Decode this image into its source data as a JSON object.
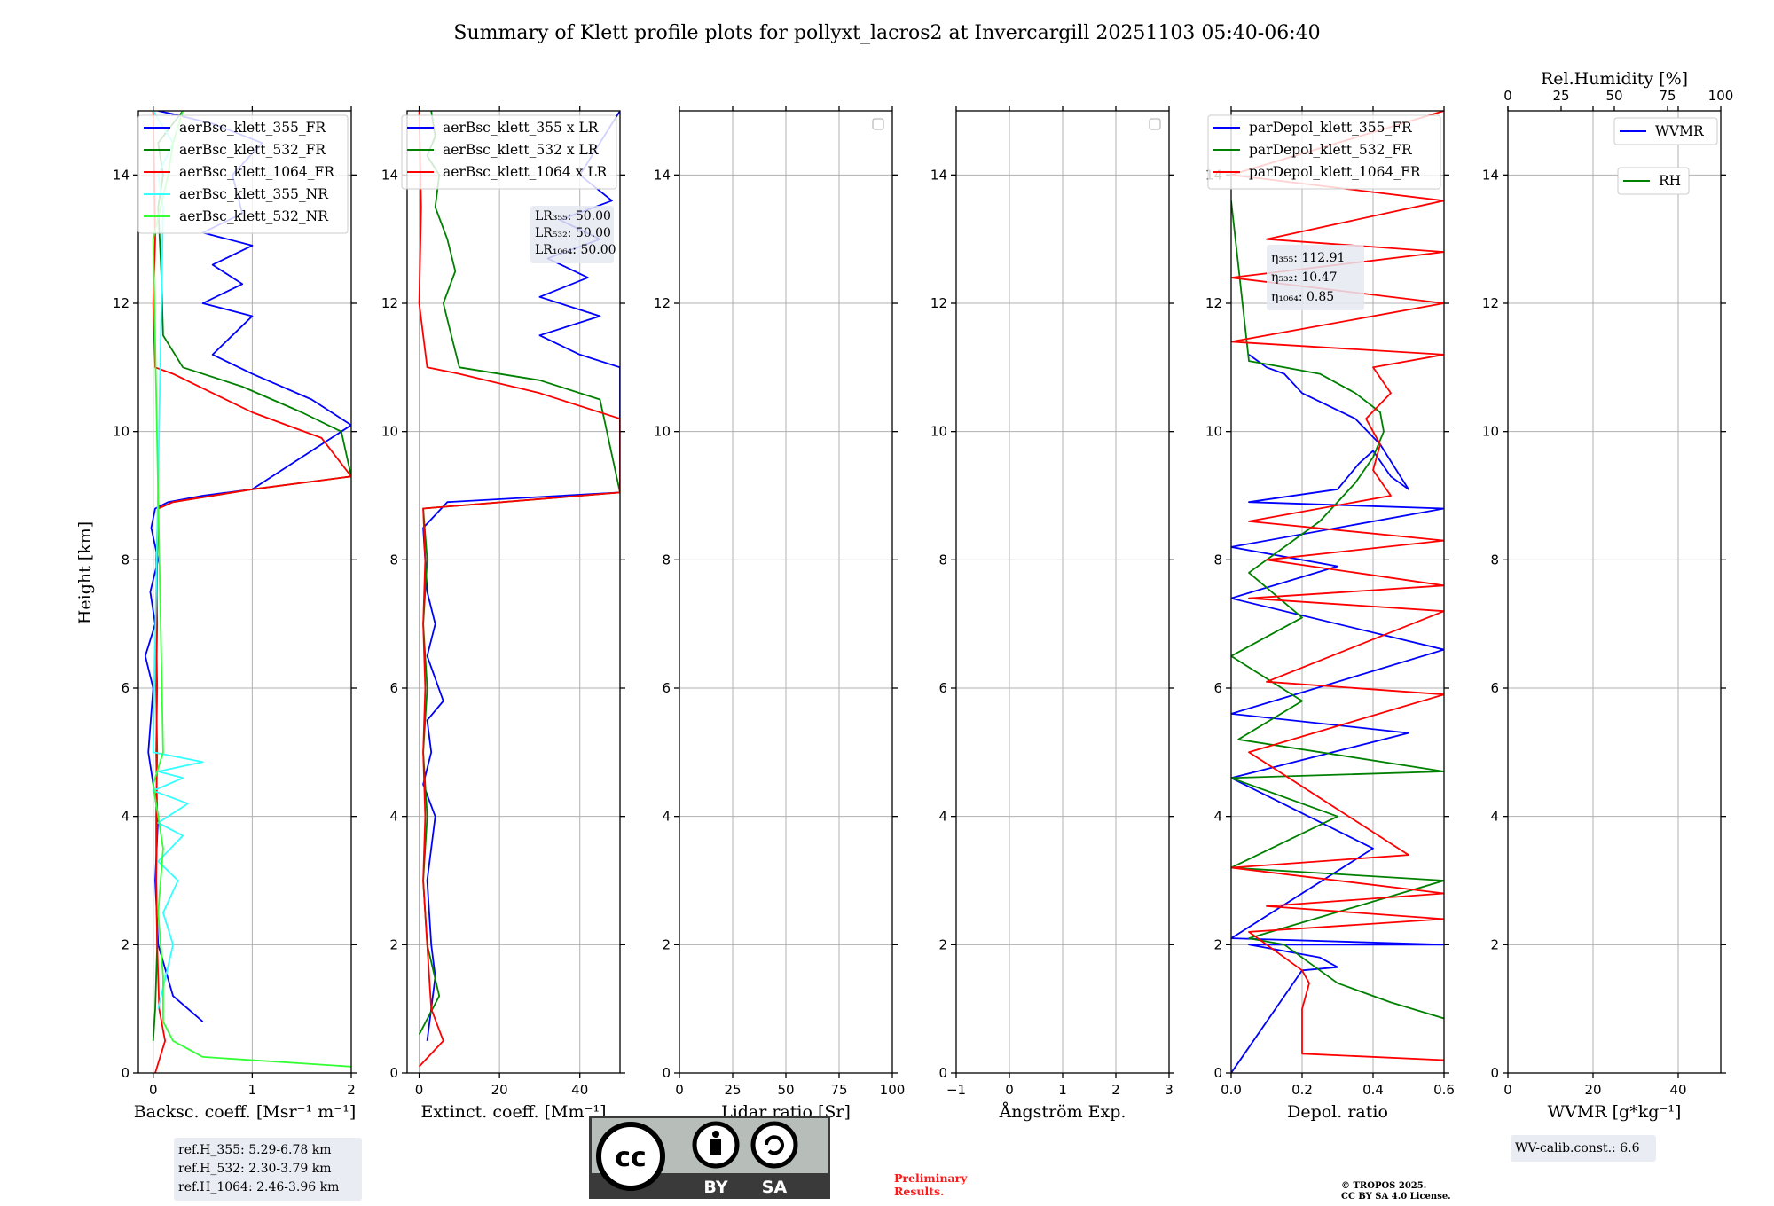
{
  "figure": {
    "title": "Summary of Klett profile plots for pollyxt_lacros2 at Invercargill 20251103 05:40-06:40",
    "y_label": "Height [km]",
    "preliminary": "Preliminary\nResults.",
    "copyright": "© TROPOS 2025.\nCC BY SA 4.0 License.",
    "cc_badge": {
      "by": "BY",
      "sa": "SA",
      "cc": "cc"
    },
    "colors": {
      "blue": "#0000ff",
      "green": "#008000",
      "red": "#ff0000",
      "cyan": "#33ffff",
      "lightgreen": "#33ff33",
      "grid": "#b0b0b0",
      "red_text": "#ff1a1a"
    }
  },
  "chart_data": [
    {
      "id": "backscatter",
      "type": "line",
      "xlabel": "Backsc. coeff. [Msr⁻¹ m⁻¹]",
      "ylabel": "Height [km]",
      "xlim": [
        -0.15,
        2.0
      ],
      "ylim": [
        0,
        15
      ],
      "xticks": [
        0,
        1,
        2
      ],
      "yticks": [
        0,
        2,
        4,
        6,
        8,
        10,
        12,
        14
      ],
      "legend": [
        "aerBsc_klett_355_FR",
        "aerBsc_klett_532_FR",
        "aerBsc_klett_1064_FR",
        "aerBsc_klett_355_NR",
        "aerBsc_klett_532_NR"
      ],
      "legend_loc": "upper right",
      "series": [
        {
          "name": "aerBsc_klett_355_FR",
          "color": "blue",
          "x": [
            0.5,
            0.2,
            0.05,
            0.02,
            0.05,
            -0.05,
            0.0,
            -0.08,
            0.02,
            -0.03,
            0.05,
            -0.02,
            0.02,
            0.15,
            0.5,
            1.0,
            2.0,
            1.6,
            1.0,
            0.6,
            0.8,
            1.0,
            0.5,
            0.9,
            0.6,
            1.0,
            0.5,
            0.9,
            0.8,
            1.1,
            0.6,
            0.2,
            0.05
          ],
          "y": [
            0.8,
            1.2,
            2.0,
            3.0,
            4.0,
            5.0,
            6.0,
            6.5,
            7.0,
            7.5,
            8.0,
            8.5,
            8.8,
            8.9,
            9.0,
            9.1,
            10.1,
            10.5,
            10.9,
            11.2,
            11.5,
            11.8,
            12.0,
            12.3,
            12.6,
            12.9,
            13.1,
            13.4,
            14.0,
            14.5,
            14.8,
            14.95,
            15.0
          ]
        },
        {
          "name": "aerBsc_klett_532_FR",
          "color": "green",
          "x": [
            0.0,
            0.02,
            0.04,
            0.03,
            0.04,
            0.03,
            0.04,
            0.03,
            0.04,
            0.05,
            0.2,
            1.0,
            2.0,
            1.9,
            1.5,
            0.9,
            0.3,
            0.1,
            0.08,
            0.05,
            0.1,
            0.05,
            0.3
          ],
          "y": [
            0.5,
            1.0,
            2.0,
            3.0,
            4.0,
            5.0,
            6.0,
            7.0,
            8.0,
            8.8,
            8.9,
            9.1,
            9.3,
            10.0,
            10.3,
            10.7,
            11.0,
            11.5,
            12.5,
            13.5,
            14.0,
            14.5,
            15.0
          ]
        },
        {
          "name": "aerBsc_klett_1064_FR",
          "color": "red",
          "x": [
            0.02,
            0.12,
            0.06,
            0.04,
            0.03,
            0.03,
            0.04,
            0.03,
            0.04,
            0.03,
            0.05,
            0.2,
            1.0,
            2.0,
            1.7,
            1.0,
            0.6,
            0.2,
            0.02,
            0.0,
            0.02,
            0.01,
            0.0
          ],
          "y": [
            0.0,
            0.5,
            1.0,
            2.0,
            3.0,
            4.0,
            5.0,
            6.0,
            7.0,
            8.0,
            8.8,
            8.9,
            9.1,
            9.3,
            9.9,
            10.3,
            10.6,
            10.9,
            11.0,
            12.0,
            13.0,
            14.0,
            15.0
          ]
        },
        {
          "name": "aerBsc_klett_355_NR",
          "color": "cyan",
          "x": [
            0.05,
            0.2,
            0.1,
            0.25,
            0.05,
            0.3,
            0.05,
            0.35,
            0.0,
            0.3,
            0.05,
            0.5,
            0.0,
            0.1,
            0.05,
            0.2,
            0.0
          ],
          "y": [
            1.0,
            2.0,
            2.5,
            3.0,
            3.3,
            3.7,
            3.9,
            4.2,
            4.4,
            4.6,
            4.7,
            4.85,
            5.0,
            13.5,
            14.0,
            14.5,
            15.0
          ]
        },
        {
          "name": "aerBsc_klett_532_NR",
          "color": "lightgreen",
          "x": [
            2.0,
            0.5,
            0.2,
            0.1,
            0.1,
            0.05,
            0.1,
            0.0,
            0.1,
            0.0,
            0.15,
            0.2,
            0.3
          ],
          "y": [
            0.1,
            0.25,
            0.5,
            0.8,
            1.5,
            2.5,
            3.5,
            4.5,
            5.0,
            13.0,
            14.0,
            14.5,
            15.0
          ]
        }
      ],
      "info_box": [
        "ref.H_355: 5.29-6.78 km",
        "ref.H_532: 2.30-3.79 km",
        "ref.H_1064: 2.46-3.96 km"
      ]
    },
    {
      "id": "extinction",
      "type": "line",
      "xlabel": "Extinct. coeff. [Mm⁻¹]",
      "xlim": [
        -3,
        50
      ],
      "ylim": [
        0,
        15
      ],
      "xticks": [
        0,
        20,
        40
      ],
      "yticks": [
        0,
        2,
        4,
        6,
        8,
        10,
        12,
        14
      ],
      "legend": [
        "aerBsc_klett_355 x LR",
        "aerBsc_klett_532 x LR",
        "aerBsc_klett_1064 x LR"
      ],
      "legend_loc": "upper right",
      "series": [
        {
          "name": "aerBsc_klett_355 x LR",
          "color": "blue",
          "x": [
            2,
            4,
            3,
            2,
            4,
            1,
            3,
            2,
            6,
            2,
            4,
            2,
            1,
            7,
            50,
            50,
            40,
            30,
            45,
            30,
            42,
            32,
            45,
            35,
            48,
            40,
            50
          ],
          "y": [
            0.5,
            1.5,
            2.0,
            3.0,
            4.0,
            4.5,
            5.0,
            5.5,
            5.8,
            6.5,
            7.0,
            7.5,
            8.5,
            8.9,
            9.05,
            11.0,
            11.2,
            11.5,
            11.8,
            12.1,
            12.4,
            12.7,
            13.0,
            13.3,
            13.6,
            14.0,
            15.0
          ]
        },
        {
          "name": "aerBsc_klett_532 x LR",
          "color": "green",
          "x": [
            0,
            5,
            2,
            1,
            2,
            1,
            2,
            1,
            2,
            1,
            50,
            45,
            30,
            10,
            8,
            6,
            9,
            7,
            4,
            5,
            2,
            4,
            3
          ],
          "y": [
            0.6,
            1.2,
            2.0,
            3.0,
            4.0,
            5.0,
            6.0,
            7.0,
            8.0,
            8.8,
            9.05,
            10.5,
            10.8,
            11.0,
            11.5,
            12.0,
            12.5,
            13.0,
            13.5,
            14.0,
            14.3,
            14.6,
            15.0
          ]
        },
        {
          "name": "aerBsc_klett_1064 x LR",
          "color": "red",
          "x": [
            0,
            6,
            3,
            2,
            1,
            1.5,
            1,
            1.5,
            1,
            1.5,
            1,
            50,
            50,
            30,
            10,
            2,
            0,
            0.5,
            0
          ],
          "y": [
            0.1,
            0.5,
            1.0,
            2.0,
            3.0,
            4.0,
            5.0,
            6.0,
            7.0,
            8.0,
            8.8,
            9.05,
            10.2,
            10.6,
            10.9,
            11.0,
            12.0,
            13.5,
            15.0
          ]
        }
      ],
      "info_box": [
        "LR₃₅₅: 50.00",
        "LR₅₃₂: 50.00",
        "LR₁₀₆₄: 50.00"
      ]
    },
    {
      "id": "lidar_ratio",
      "type": "line",
      "xlabel": "Lidar ratio [Sr]",
      "xlim": [
        0,
        100
      ],
      "ylim": [
        0,
        15
      ],
      "xticks": [
        0,
        25,
        50,
        75,
        100
      ],
      "yticks": [
        0,
        2,
        4,
        6,
        8,
        10,
        12,
        14
      ],
      "series": []
    },
    {
      "id": "angstrom",
      "type": "line",
      "xlabel": "Ångström Exp.",
      "xlim": [
        -1,
        3
      ],
      "ylim": [
        0,
        15
      ],
      "xticks": [
        -1,
        0,
        1,
        2,
        3
      ],
      "yticks": [
        0,
        2,
        4,
        6,
        8,
        10,
        12,
        14
      ],
      "series": []
    },
    {
      "id": "depol",
      "type": "line",
      "xlabel": "Depol. ratio",
      "xlim": [
        0,
        0.6
      ],
      "ylim": [
        0,
        15
      ],
      "xticks": [
        0.0,
        0.2,
        0.4,
        0.6
      ],
      "tick_labels": [
        "0.0",
        "0.2",
        "0.4",
        "0.6"
      ],
      "yticks": [
        0,
        2,
        4,
        6,
        8,
        10,
        12,
        14
      ],
      "legend": [
        "parDepol_klett_355_FR",
        "parDepol_klett_532_FR",
        "parDepol_klett_1064_FR"
      ],
      "legend_loc": "upper right",
      "series": [
        {
          "name": "parDepol_klett_355_FR",
          "color": "blue",
          "x": [
            0.0,
            0.2,
            0.3,
            0.25,
            0.05,
            0.6,
            0.0,
            0.4,
            0.0,
            0.5,
            0.0,
            0.6,
            0.0,
            0.3,
            0.0,
            0.6,
            0.05,
            0.3,
            0.36,
            0.4,
            0.45,
            0.5,
            0.42,
            0.35,
            0.2,
            0.15,
            0.1,
            0.05
          ],
          "y": [
            0.0,
            1.6,
            1.65,
            1.8,
            2.0,
            2.0,
            2.1,
            3.5,
            4.6,
            5.3,
            5.6,
            6.6,
            7.4,
            7.9,
            8.2,
            8.8,
            8.9,
            9.1,
            9.5,
            9.7,
            9.3,
            9.1,
            9.8,
            10.2,
            10.6,
            10.9,
            11.0,
            11.2
          ]
        },
        {
          "name": "parDepol_klett_532_FR",
          "color": "green",
          "x": [
            0.6,
            0.45,
            0.3,
            0.25,
            0.2,
            0.15,
            0.05,
            0.6,
            0.0,
            0.3,
            0.0,
            0.6,
            0.02,
            0.2,
            0.0,
            0.2,
            0.05,
            0.25,
            0.35,
            0.4,
            0.43,
            0.42,
            0.35,
            0.25,
            0.15,
            0.05,
            0.0
          ],
          "y": [
            0.85,
            1.1,
            1.4,
            1.6,
            1.8,
            2.0,
            2.1,
            3.0,
            3.2,
            4.0,
            4.6,
            4.7,
            5.2,
            5.8,
            6.5,
            7.1,
            7.8,
            8.6,
            9.2,
            9.6,
            10.0,
            10.3,
            10.6,
            10.9,
            11.0,
            11.1,
            13.6
          ]
        },
        {
          "name": "parDepol_klett_1064_FR",
          "color": "red",
          "x": [
            0.6,
            0.2,
            0.2,
            0.22,
            0.2,
            0.15,
            0.1,
            0.05,
            0.6,
            0.1,
            0.6,
            0.0,
            0.5,
            0.05,
            0.6,
            0.1,
            0.6,
            0.05,
            0.6,
            0.1,
            0.6,
            0.05,
            0.45,
            0.4,
            0.42,
            0.38,
            0.45,
            0.4,
            0.6,
            0.0,
            0.6,
            0.0,
            0.6,
            0.1,
            0.6,
            0.0,
            0.6
          ],
          "y": [
            0.2,
            0.3,
            1.0,
            1.4,
            1.6,
            1.8,
            2.0,
            2.2,
            2.4,
            2.6,
            2.8,
            3.2,
            3.4,
            5.0,
            5.9,
            6.1,
            7.2,
            7.4,
            7.6,
            8.0,
            8.3,
            8.6,
            9.0,
            9.4,
            9.8,
            10.2,
            10.6,
            11.0,
            11.2,
            11.4,
            12.0,
            12.4,
            12.8,
            13.0,
            13.6,
            14.0,
            15.0
          ]
        }
      ],
      "info_box": [
        "η₃₅₅: 112.91",
        "η₅₃₂: 10.47",
        "η₁₀₆₄: 0.85"
      ]
    },
    {
      "id": "wvmr",
      "type": "line",
      "xlabel": "WVMR [g*kg⁻¹]",
      "top_label": "Rel.Humidity [%]",
      "xlim": [
        0,
        50
      ],
      "top_xlim": [
        0,
        100
      ],
      "ylim": [
        0,
        15
      ],
      "xticks": [
        0,
        20,
        40
      ],
      "top_xticks": [
        0,
        25,
        50,
        75,
        100
      ],
      "yticks": [
        0,
        2,
        4,
        6,
        8,
        10,
        12,
        14
      ],
      "legend": [
        "WVMR",
        "RH"
      ],
      "series": [],
      "info_box": [
        "WV-calib.const.: 6.6"
      ]
    }
  ]
}
